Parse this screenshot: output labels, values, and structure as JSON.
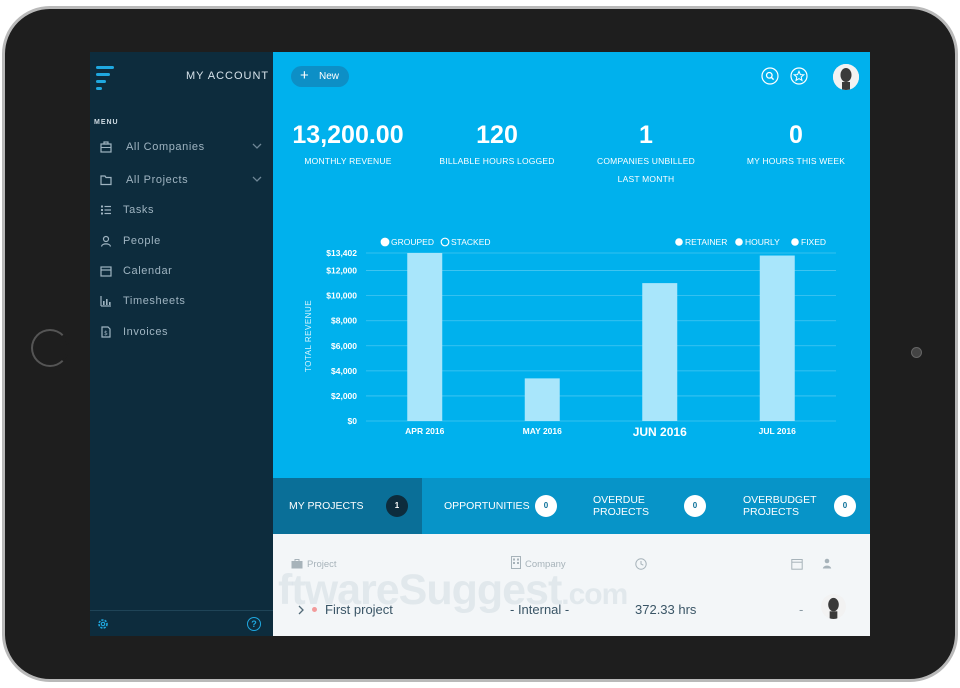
{
  "sidebar": {
    "account_label": "MY ACCOUNT",
    "menu_title": "MENU",
    "items": [
      {
        "label": "All Companies",
        "icon": "briefcase-icon"
      },
      {
        "label": "All Projects",
        "icon": "folder-icon"
      },
      {
        "label": "Tasks",
        "icon": "list-icon"
      },
      {
        "label": "People",
        "icon": "person-icon"
      },
      {
        "label": "Calendar",
        "icon": "calendar-icon"
      },
      {
        "label": "Timesheets",
        "icon": "bar-chart-icon"
      },
      {
        "label": "Invoices",
        "icon": "invoice-icon"
      }
    ],
    "help_glyph": "?"
  },
  "header": {
    "new_label": "New"
  },
  "stats": [
    {
      "value": "13,200.00",
      "label": "MONTHLY REVENUE"
    },
    {
      "value": "120",
      "label": "BILLABLE HOURS LOGGED"
    },
    {
      "value": "1",
      "label": "COMPANIES UNBILLED LAST MONTH"
    },
    {
      "value": "0",
      "label": "MY HOURS THIS WEEK"
    }
  ],
  "chart_data": {
    "type": "bar",
    "categories": [
      "APR 2016",
      "MAY 2016",
      "JUN 2016",
      "JUL 2016"
    ],
    "values": [
      13402,
      3400,
      11000,
      13200
    ],
    "highlighted_category": "JUN 2016",
    "ylabel": "TOTAL REVENUE",
    "ylim": [
      0,
      13402
    ],
    "y_ticks": [
      {
        "value": 0,
        "label": "$0"
      },
      {
        "value": 2000,
        "label": "$2,000"
      },
      {
        "value": 4000,
        "label": "$4,000"
      },
      {
        "value": 6000,
        "label": "$6,000"
      },
      {
        "value": 8000,
        "label": "$8,000"
      },
      {
        "value": 10000,
        "label": "$10,000"
      },
      {
        "value": 12000,
        "label": "$12,000"
      },
      {
        "value": 13402,
        "label": "$13,402"
      }
    ],
    "grid": true,
    "bar_color": "#a9e6fb",
    "mode_options": [
      "GROUPED",
      "STACKED"
    ],
    "selected_mode": "GROUPED",
    "filters": [
      "RETAINER",
      "HOURLY",
      "FIXED"
    ]
  },
  "tabs": [
    {
      "label": "MY PROJECTS",
      "count": "1"
    },
    {
      "label": "OPPORTUNITIES",
      "count": "0"
    },
    {
      "label": "OVERDUE PROJECTS",
      "count": "0"
    },
    {
      "label": "OVERBUDGET PROJECTS",
      "count": "0"
    }
  ],
  "projects": {
    "headers": {
      "project": "Project",
      "company": "Company"
    },
    "rows": [
      {
        "name": "First project",
        "company": "- Internal -",
        "hours": "372.33 hrs",
        "due": "-"
      }
    ]
  },
  "watermark": {
    "main": "ftwareSuggest",
    "suffix": ".com"
  },
  "colors": {
    "main_bg": "#00b1ed",
    "sidebar_bg": "#0d2c3d",
    "tab_bar": "#0794c8",
    "tab_active": "#0a6f98",
    "status_dot": "#f29b9b"
  }
}
